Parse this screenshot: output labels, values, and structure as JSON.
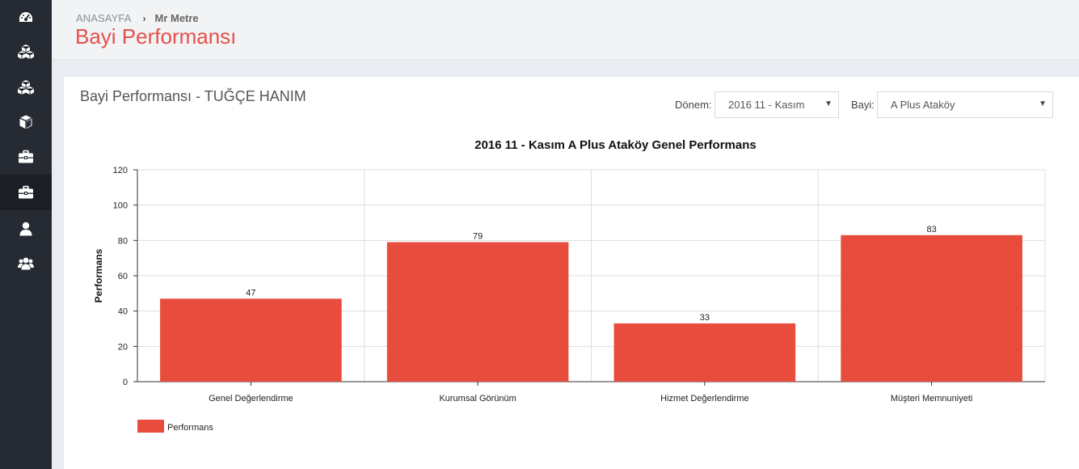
{
  "sidebar": {
    "items": [
      {
        "icon": "dashboard-icon",
        "active": false
      },
      {
        "icon": "cubes-icon",
        "active": false
      },
      {
        "icon": "cubes-icon",
        "active": false
      },
      {
        "icon": "cube-icon",
        "active": false
      },
      {
        "icon": "briefcase-icon",
        "active": false
      },
      {
        "icon": "briefcase-icon",
        "active": true
      },
      {
        "icon": "user-icon",
        "active": false
      },
      {
        "icon": "users-icon",
        "active": false
      }
    ]
  },
  "breadcrumb": {
    "home": "ANASAYFA",
    "current": "Mr Metre"
  },
  "page_title": "Bayi Performansı",
  "panel": {
    "title": "Bayi Performansı - TUĞÇE HANIM",
    "period_label": "Dönem:",
    "period_value": "2016 11 - Kasım",
    "dealer_label": "Bayi:",
    "dealer_value": "A Plus Ataköy"
  },
  "colors": {
    "accent": "#e5504a",
    "bar": "#e74c3c",
    "sidebar": "#262b33"
  },
  "chart_data": {
    "type": "bar",
    "title": "2016 11 - Kasım A Plus Ataköy Genel Performans",
    "xlabel": "",
    "ylabel": "Performans",
    "categories": [
      "Genel Değerlendirme",
      "Kurumsal Görünüm",
      "Hizmet Değerlendirme",
      "Müşteri Memnuniyeti"
    ],
    "series": [
      {
        "name": "Performans",
        "values": [
          47,
          79,
          33,
          83
        ]
      }
    ],
    "ylim": [
      0,
      120
    ],
    "yticks": [
      0,
      20,
      40,
      60,
      80,
      100,
      120
    ],
    "grid": true,
    "legend": "bottom-left",
    "data_labels": true
  }
}
